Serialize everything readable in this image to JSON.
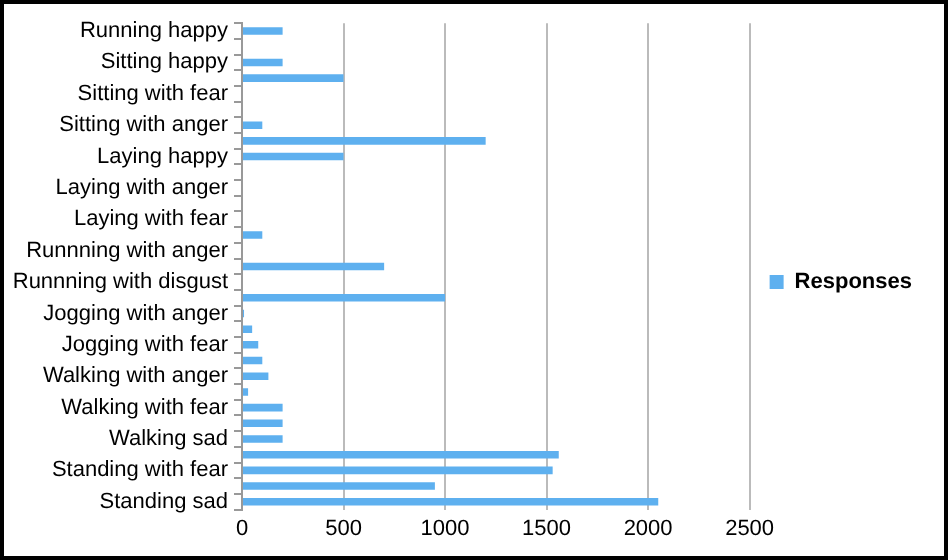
{
  "chart_data": {
    "type": "bar",
    "orientation": "horizontal",
    "categories": [
      "Running happy",
      null,
      "Sitting happy",
      null,
      "Sitting with fear",
      null,
      "Sitting with anger",
      null,
      "Laying happy",
      null,
      "Laying with anger",
      null,
      "Laying with fear",
      null,
      "Runnning with anger",
      null,
      "Runnning with disgust",
      null,
      "Jogging with anger",
      null,
      "Jogging with fear",
      null,
      "Walking with anger",
      null,
      "Walking with fear",
      null,
      "Walking sad",
      null,
      "Standing with fear",
      null,
      "Standing sad"
    ],
    "series": [
      {
        "name": "Responses",
        "color": "#5eb0ef",
        "values": [
          200,
          0,
          200,
          500,
          0,
          0,
          100,
          1200,
          500,
          0,
          0,
          0,
          0,
          100,
          0,
          700,
          0,
          1000,
          10,
          50,
          80,
          100,
          130,
          30,
          200,
          200,
          200,
          1560,
          1530,
          950,
          2050
        ]
      }
    ],
    "xlim": [
      0,
      2500
    ],
    "xticks": [
      0,
      500,
      1000,
      1500,
      2000,
      2500
    ],
    "grid": "x",
    "legend": "right"
  }
}
